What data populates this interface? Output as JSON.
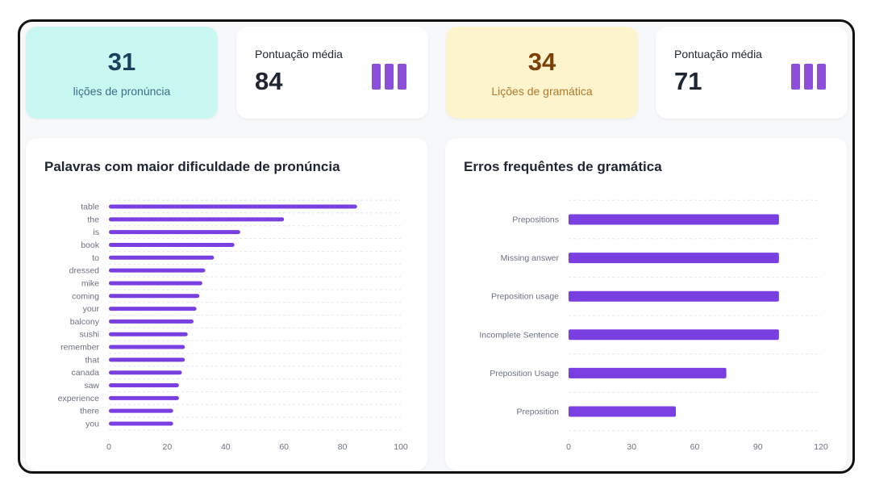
{
  "stats": [
    {
      "value": "31",
      "label": "lições de pronúncia"
    },
    {
      "label": "Pontuação média",
      "value": "84",
      "icon": "bar-chart-icon"
    },
    {
      "value": "34",
      "label": "Lições de gramática"
    },
    {
      "label": "Pontuação média",
      "value": "71",
      "icon": "bar-chart-icon"
    }
  ],
  "colors": {
    "teal_card": "#c9f7f1",
    "teal_text": "#1c3f5e",
    "yellow_card": "#fdf3cd",
    "yellow_text": "#7a3f07",
    "yellow_label": "#b07a2a",
    "bar": "#7a3fe0",
    "icon": "#8b4fd9"
  },
  "panels": {
    "left_title": "Palavras com maior dificuldade de pronúncia",
    "right_title": "Erros frequêntes de gramática"
  },
  "chart_data": [
    {
      "type": "bar",
      "orientation": "horizontal",
      "title": "Palavras com maior dificuldade de pronúncia",
      "categories": [
        "table",
        "the",
        "is",
        "book",
        "to",
        "dressed",
        "mike",
        "coming",
        "your",
        "balcony",
        "sushi",
        "remember",
        "that",
        "canada",
        "saw",
        "experience",
        "there",
        "you"
      ],
      "values": [
        85,
        60,
        45,
        43,
        36,
        33,
        32,
        31,
        30,
        29,
        27,
        26,
        26,
        25,
        24,
        24,
        22,
        22
      ],
      "xlim": [
        0,
        100
      ],
      "xticks": [
        0,
        20,
        40,
        60,
        80,
        100
      ],
      "grid": true
    },
    {
      "type": "bar",
      "orientation": "horizontal",
      "title": "Erros frequêntes de gramática",
      "categories": [
        "Prepositions",
        "Missing answer",
        "Preposition usage",
        "Incomplete Sentence",
        "Preposition Usage",
        "Preposition"
      ],
      "values": [
        100,
        100,
        100,
        100,
        75,
        51
      ],
      "xlim": [
        0,
        120
      ],
      "xticks": [
        0,
        30,
        60,
        90,
        120
      ],
      "grid": true
    }
  ]
}
